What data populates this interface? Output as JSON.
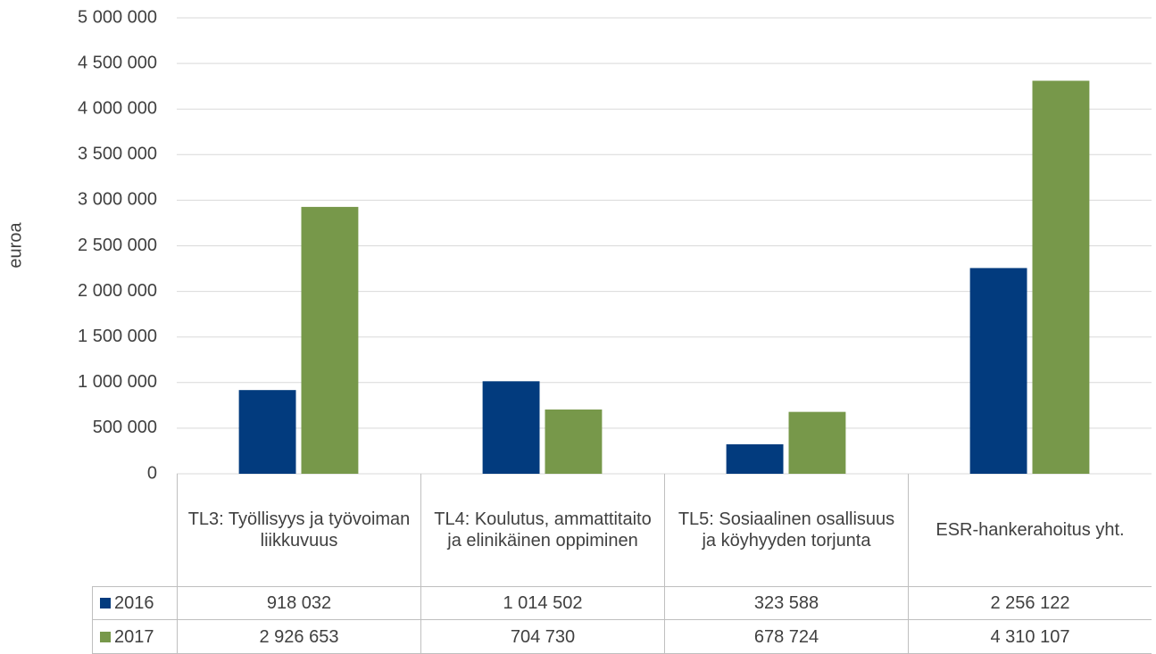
{
  "chart_data": {
    "type": "bar",
    "y_label": "euroa",
    "categories": [
      "TL3: Työllisyys ja työvoiman liikkuvuus",
      "TL4: Koulutus, ammattitaito ja elinikäinen oppiminen",
      "TL5: Sosiaalinen osallisuus ja köyhyyden torjunta",
      "ESR-hankerahoitus yht."
    ],
    "series": [
      {
        "name": "2016",
        "color": "#023b7e",
        "values": [
          918032,
          1014502,
          323588,
          2256122
        ],
        "value_labels": [
          "918 032",
          "1 014 502",
          "323 588",
          "2 256 122"
        ]
      },
      {
        "name": "2017",
        "color": "#77984a",
        "values": [
          2926653,
          704730,
          678724,
          4310107
        ],
        "value_labels": [
          "2 926 653",
          "704 730",
          "678 724",
          "4 310 107"
        ]
      }
    ],
    "ylim": [
      0,
      5000000
    ],
    "yticks": [
      0,
      {
        "value": 500000,
        "label": "500 000"
      },
      {
        "value": 1000000,
        "label": "1 000 000"
      },
      {
        "value": 1500000,
        "label": "1 500 000"
      },
      {
        "value": 2000000,
        "label": "2 000 000"
      },
      {
        "value": 2500000,
        "label": "2 500 000"
      },
      {
        "value": 3000000,
        "label": "3 000 000"
      },
      {
        "value": 3500000,
        "label": "3 500 000"
      },
      {
        "value": 4000000,
        "label": "4 000 000"
      },
      {
        "value": 4500000,
        "label": "4 500 000"
      },
      {
        "value": 5000000,
        "label": "5 000 000"
      }
    ],
    "grid": true
  }
}
